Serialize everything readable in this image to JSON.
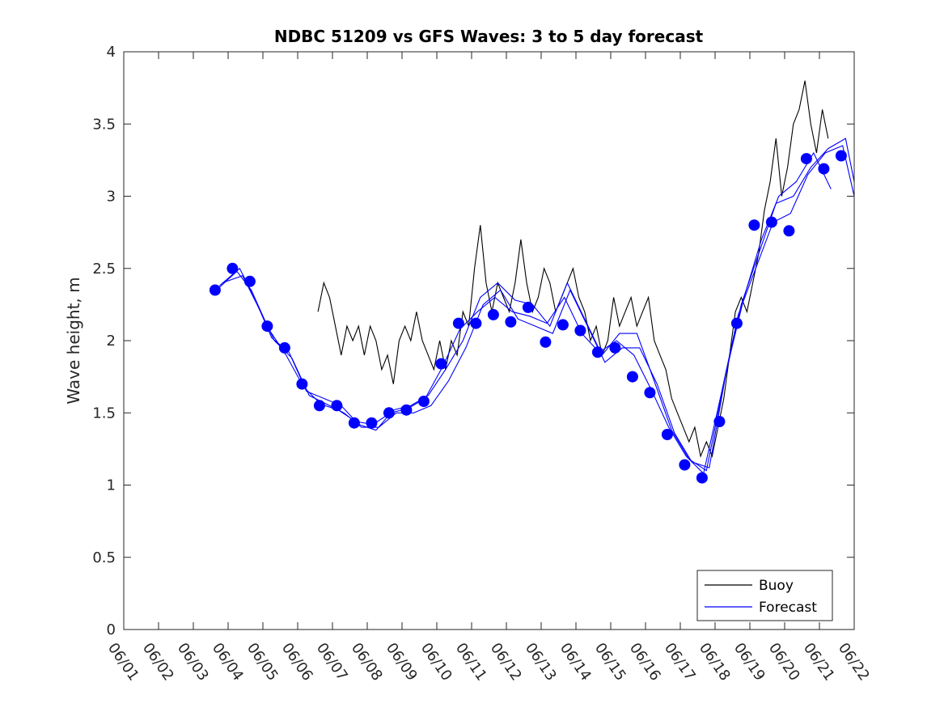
{
  "chart_data": {
    "type": "line",
    "title": "NDBC 51209 vs GFS Waves: 3 to 5 day forecast",
    "xlabel": "",
    "ylabel": "Wave height, m",
    "xlim": [
      "06/01",
      "06/22"
    ],
    "ylim": [
      0,
      4
    ],
    "x_tick_labels": [
      "06/01",
      "06/02",
      "06/03",
      "06/04",
      "06/05",
      "06/06",
      "06/07",
      "06/08",
      "06/09",
      "06/10",
      "06/11",
      "06/12",
      "06/13",
      "06/14",
      "06/15",
      "06/16",
      "06/17",
      "06/18",
      "06/19",
      "06/20",
      "06/21",
      "06/22"
    ],
    "y_tick_labels": [
      "0",
      "0.5",
      "1",
      "1.5",
      "2",
      "2.5",
      "3",
      "3.5",
      "4"
    ],
    "grid": false,
    "legend": {
      "position": "bottom-right",
      "entries": [
        "Buoy",
        "Forecast"
      ]
    },
    "colors": {
      "buoy": "#000000",
      "forecast": "#0000ff"
    },
    "series": [
      {
        "name": "Buoy",
        "kind": "line",
        "x": [
          "06/06 14:00",
          "06/06 18:00",
          "06/06 22:00",
          "06/07 02:00",
          "06/07 06:00",
          "06/07 10:00",
          "06/07 14:00",
          "06/07 18:00",
          "06/07 22:00",
          "06/08 02:00",
          "06/08 06:00",
          "06/08 10:00",
          "06/08 14:00",
          "06/08 18:00",
          "06/08 22:00",
          "06/09 02:00",
          "06/09 06:00",
          "06/09 10:00",
          "06/09 14:00",
          "06/09 18:00",
          "06/09 22:00",
          "06/10 02:00",
          "06/10 06:00",
          "06/10 10:00",
          "06/10 14:00",
          "06/10 18:00",
          "06/10 22:00",
          "06/11 02:00",
          "06/11 06:00",
          "06/11 10:00",
          "06/11 14:00",
          "06/11 18:00",
          "06/11 22:00",
          "06/12 02:00",
          "06/12 06:00",
          "06/12 10:00",
          "06/12 14:00",
          "06/12 18:00",
          "06/12 22:00",
          "06/13 02:00",
          "06/13 06:00",
          "06/13 10:00",
          "06/13 14:00",
          "06/13 18:00",
          "06/13 22:00",
          "06/14 02:00",
          "06/14 06:00",
          "06/14 10:00",
          "06/14 14:00",
          "06/14 18:00",
          "06/14 22:00",
          "06/15 02:00",
          "06/15 06:00",
          "06/15 10:00",
          "06/15 14:00",
          "06/15 18:00",
          "06/15 22:00",
          "06/16 02:00",
          "06/16 06:00",
          "06/16 10:00",
          "06/16 14:00",
          "06/16 18:00",
          "06/16 22:00",
          "06/17 02:00",
          "06/17 06:00",
          "06/17 10:00",
          "06/17 14:00",
          "06/17 18:00",
          "06/17 22:00",
          "06/18 02:00",
          "06/18 06:00",
          "06/18 10:00",
          "06/18 14:00",
          "06/18 18:00",
          "06/18 22:00",
          "06/19 02:00",
          "06/19 06:00",
          "06/19 10:00",
          "06/19 14:00",
          "06/19 18:00",
          "06/19 22:00",
          "06/20 02:00",
          "06/20 06:00",
          "06/20 10:00",
          "06/20 14:00",
          "06/20 18:00",
          "06/20 22:00",
          "06/21 02:00",
          "06/21 06:00"
        ],
        "y": [
          2.2,
          2.4,
          2.3,
          2.1,
          1.9,
          2.1,
          2.0,
          2.1,
          1.9,
          2.1,
          2.0,
          1.8,
          1.9,
          1.7,
          2.0,
          2.1,
          2.0,
          2.2,
          2.0,
          1.9,
          1.8,
          2.0,
          1.8,
          2.0,
          1.9,
          2.2,
          2.1,
          2.5,
          2.8,
          2.4,
          2.2,
          2.4,
          2.3,
          2.2,
          2.4,
          2.7,
          2.4,
          2.2,
          2.3,
          2.5,
          2.4,
          2.2,
          2.3,
          2.4,
          2.5,
          2.3,
          2.2,
          2.0,
          2.1,
          1.9,
          2.0,
          2.3,
          2.1,
          2.2,
          2.3,
          2.1,
          2.2,
          2.3,
          2.0,
          1.9,
          1.8,
          1.6,
          1.5,
          1.4,
          1.3,
          1.4,
          1.2,
          1.3,
          1.2,
          1.4,
          1.6,
          1.9,
          2.2,
          2.3,
          2.2,
          2.4,
          2.6,
          2.9,
          3.1,
          3.4,
          3.0,
          3.2,
          3.5,
          3.6,
          3.8,
          3.5,
          3.3,
          3.6,
          3.4
        ]
      },
      {
        "name": "Forecast",
        "kind": "markers",
        "x": [
          "06/03 15:00",
          "06/04 03:00",
          "06/04 15:00",
          "06/05 03:00",
          "06/05 15:00",
          "06/06 03:00",
          "06/06 15:00",
          "06/07 03:00",
          "06/07 15:00",
          "06/08 03:00",
          "06/08 15:00",
          "06/09 03:00",
          "06/09 15:00",
          "06/10 03:00",
          "06/10 15:00",
          "06/11 03:00",
          "06/11 15:00",
          "06/12 03:00",
          "06/12 15:00",
          "06/13 03:00",
          "06/13 15:00",
          "06/14 03:00",
          "06/14 15:00",
          "06/15 03:00",
          "06/15 15:00",
          "06/16 03:00",
          "06/16 15:00",
          "06/17 03:00",
          "06/17 15:00",
          "06/18 03:00",
          "06/18 15:00",
          "06/19 03:00",
          "06/19 15:00",
          "06/20 03:00",
          "06/20 15:00",
          "06/21 03:00",
          "06/21 15:00"
        ],
        "y": [
          2.35,
          2.5,
          2.41,
          2.1,
          1.95,
          1.7,
          1.55,
          1.55,
          1.43,
          1.43,
          1.5,
          1.52,
          1.58,
          1.84,
          2.12,
          2.12,
          2.18,
          2.13,
          2.23,
          1.99,
          2.11,
          2.07,
          1.92,
          1.95,
          1.75,
          1.64,
          1.35,
          1.14,
          1.05,
          1.44,
          2.12,
          2.8,
          2.82,
          2.76,
          3.26,
          3.19,
          3.28
        ]
      },
      {
        "name": "",
        "kind": "line",
        "x": [
          "06/03 16:00",
          "06/04 06:00",
          "06/04 16:00",
          "06/05 04:00",
          "06/05 16:00",
          "06/06 04:00",
          "06/06 16:00",
          "06/07 04:00",
          "06/07 16:00",
          "06/08 04:00",
          "06/08 16:00",
          "06/09 04:00",
          "06/09 16:00",
          "06/10 04:00",
          "06/10 16:00",
          "06/11 04:00",
          "06/11 16:00",
          "06/12 04:00",
          "06/12 16:00",
          "06/13 04:00",
          "06/13 16:00",
          "06/14 04:00",
          "06/14 16:00",
          "06/15 04:00",
          "06/15 16:00",
          "06/16 04:00",
          "06/16 16:00",
          "06/17 04:00",
          "06/17 16:00",
          "06/18 04:00",
          "06/18 16:00",
          "06/19 04:00",
          "06/19 16:00",
          "06/20 04:00",
          "06/20 16:00",
          "06/21 04:00",
          "06/21 16:00",
          "06/22 00:00"
        ],
        "y": [
          2.35,
          2.48,
          2.35,
          2.08,
          1.9,
          1.68,
          1.56,
          1.52,
          1.44,
          1.42,
          1.5,
          1.53,
          1.6,
          1.82,
          2.08,
          2.2,
          2.3,
          2.2,
          2.17,
          2.12,
          2.3,
          2.05,
          1.92,
          2.0,
          1.9,
          1.66,
          1.4,
          1.2,
          1.08,
          1.62,
          2.18,
          2.5,
          2.82,
          2.88,
          3.15,
          3.3,
          3.35,
          3.0
        ]
      },
      {
        "name": "",
        "kind": "line",
        "x": [
          "06/03 18:00",
          "06/04 08:00",
          "06/04 18:00",
          "06/05 06:00",
          "06/05 18:00",
          "06/06 06:00",
          "06/06 18:00",
          "06/07 06:00",
          "06/07 18:00",
          "06/08 06:00",
          "06/08 18:00",
          "06/09 06:00",
          "06/09 18:00",
          "06/10 06:00",
          "06/10 18:00",
          "06/11 06:00",
          "06/11 18:00",
          "06/12 06:00",
          "06/12 18:00",
          "06/13 06:00",
          "06/13 18:00",
          "06/14 06:00",
          "06/14 18:00",
          "06/15 06:00",
          "06/15 18:00",
          "06/16 06:00",
          "06/16 18:00",
          "06/17 06:00",
          "06/17 18:00",
          "06/18 06:00",
          "06/18 18:00",
          "06/19 06:00",
          "06/19 18:00",
          "06/20 06:00",
          "06/20 18:00",
          "06/21 06:00",
          "06/21 18:00",
          "06/22 00:00"
        ],
        "y": [
          2.38,
          2.5,
          2.3,
          2.02,
          1.92,
          1.65,
          1.6,
          1.55,
          1.42,
          1.38,
          1.52,
          1.55,
          1.62,
          1.8,
          2.0,
          2.3,
          2.4,
          2.28,
          2.25,
          2.1,
          2.4,
          2.15,
          1.9,
          2.05,
          2.05,
          1.72,
          1.38,
          1.18,
          1.1,
          1.7,
          2.25,
          2.6,
          2.95,
          3.0,
          3.2,
          3.33,
          3.4,
          3.1
        ]
      },
      {
        "name": "",
        "kind": "line",
        "x": [
          "06/03 20:00",
          "06/04 10:00",
          "06/04 20:00",
          "06/05 08:00",
          "06/05 20:00",
          "06/06 08:00",
          "06/06 20:00",
          "06/07 08:00",
          "06/07 20:00",
          "06/08 08:00",
          "06/08 20:00",
          "06/09 08:00",
          "06/09 20:00",
          "06/10 08:00",
          "06/10 20:00",
          "06/11 08:00",
          "06/11 20:00",
          "06/12 08:00",
          "06/12 20:00",
          "06/13 08:00",
          "06/13 20:00",
          "06/14 08:00",
          "06/14 20:00",
          "06/15 08:00",
          "06/15 20:00",
          "06/16 08:00",
          "06/16 20:00",
          "06/17 08:00",
          "06/17 20:00",
          "06/18 08:00",
          "06/18 20:00",
          "06/19 08:00",
          "06/19 20:00",
          "06/20 08:00",
          "06/20 20:00",
          "06/21 08:00"
        ],
        "y": [
          2.4,
          2.45,
          2.25,
          2.0,
          1.88,
          1.62,
          1.56,
          1.5,
          1.4,
          1.4,
          1.5,
          1.5,
          1.55,
          1.72,
          1.95,
          2.25,
          2.35,
          2.15,
          2.1,
          2.05,
          2.35,
          2.1,
          1.85,
          1.95,
          1.95,
          1.7,
          1.36,
          1.16,
          1.12,
          1.8,
          2.3,
          2.7,
          3.0,
          3.1,
          3.3,
          3.05
        ]
      }
    ]
  }
}
